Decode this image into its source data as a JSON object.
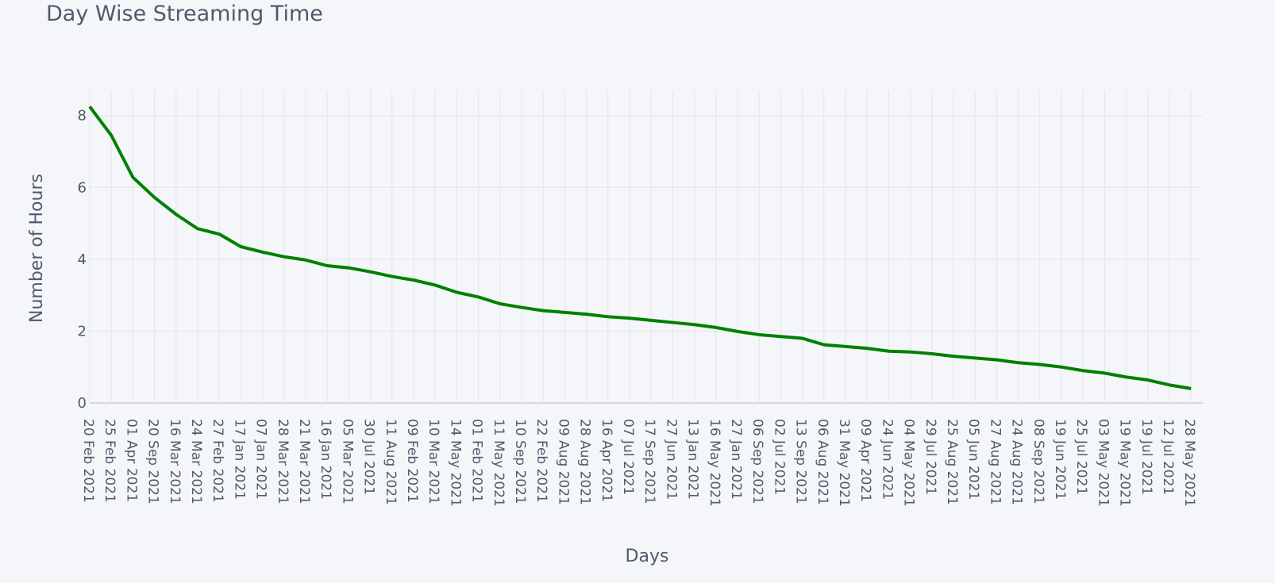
{
  "chart_data": {
    "type": "line",
    "title": "Day Wise Streaming Time",
    "xlabel": "Days",
    "ylabel": "Number of Hours",
    "categories": [
      "20 Feb 2021",
      "25 Feb 2021",
      "01 Apr 2021",
      "20 Sep 2021",
      "16 Mar 2021",
      "24 Mar 2021",
      "27 Feb 2021",
      "17 Jan 2021",
      "07 Jan 2021",
      "28 Mar 2021",
      "21 Mar 2021",
      "16 Jan 2021",
      "05 Mar 2021",
      "30 Jul 2021",
      "11 Aug 2021",
      "09 Feb 2021",
      "10 Mar 2021",
      "14 May 2021",
      "01 Feb 2021",
      "11 May 2021",
      "10 Sep 2021",
      "22 Feb 2021",
      "09 Aug 2021",
      "28 Aug 2021",
      "16 Apr 2021",
      "07 Jul 2021",
      "17 Sep 2021",
      "27 Jun 2021",
      "13 Jan 2021",
      "16 May 2021",
      "27 Jan 2021",
      "06 Sep 2021",
      "02 Jul 2021",
      "13 Sep 2021",
      "06 Aug 2021",
      "31 May 2021",
      "09 Apr 2021",
      "24 Jun 2021",
      "04 May 2021",
      "29 Jul 2021",
      "25 Aug 2021",
      "05 Jun 2021",
      "27 Aug 2021",
      "24 Aug 2021",
      "08 Sep 2021",
      "19 Jun 2021",
      "25 Jul 2021",
      "03 May 2021",
      "19 May 2021",
      "19 Jul 2021",
      "12 Jul 2021",
      "28 May 2021"
    ],
    "values": [
      8.25,
      7.45,
      6.28,
      5.72,
      5.25,
      4.85,
      4.7,
      4.35,
      4.2,
      4.07,
      3.98,
      3.82,
      3.76,
      3.65,
      3.52,
      3.42,
      3.28,
      3.08,
      2.95,
      2.76,
      2.66,
      2.57,
      2.52,
      2.47,
      2.4,
      2.36,
      2.3,
      2.24,
      2.18,
      2.1,
      1.99,
      1.9,
      1.85,
      1.8,
      1.62,
      1.57,
      1.52,
      1.44,
      1.42,
      1.37,
      1.3,
      1.25,
      1.2,
      1.12,
      1.07,
      1.0,
      0.9,
      0.83,
      0.72,
      0.64,
      0.5,
      0.4
    ],
    "color": "#008000",
    "ylim": [
      0,
      8.7
    ],
    "yticks": [
      0,
      2,
      4,
      6,
      8
    ],
    "grid": true
  }
}
